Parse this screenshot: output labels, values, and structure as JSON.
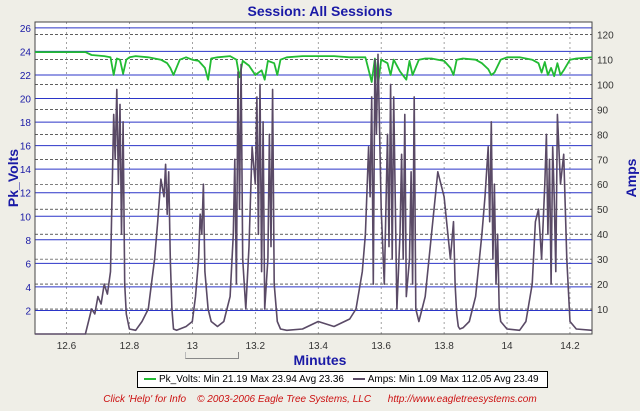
{
  "chart_data": {
    "type": "line",
    "title": "Session: All Sessions",
    "xlabel": "Minutes",
    "ylabel_left": "Pk_Volts",
    "ylabel_right": "Amps",
    "xlim": [
      12.5,
      14.27
    ],
    "ylim_left": [
      0,
      26.5
    ],
    "ylim_right": [
      0,
      125
    ],
    "x_ticks": [
      12.6,
      12.8,
      13,
      13.2,
      13.4,
      13.6,
      13.8,
      14,
      14.2
    ],
    "y_left_ticks": [
      2,
      4,
      6,
      8,
      10,
      12,
      14,
      16,
      18,
      20,
      22,
      24,
      26
    ],
    "y_right_ticks": [
      10,
      20,
      30,
      40,
      50,
      60,
      70,
      80,
      90,
      100,
      110,
      120
    ],
    "grid": true,
    "legend_position": "bottom",
    "series": [
      {
        "name": "Pk_Volts",
        "axis": "left",
        "color": "#22bb33",
        "x": [
          12.5,
          12.66,
          12.68,
          12.72,
          12.74,
          12.75,
          12.76,
          12.77,
          12.78,
          12.79,
          12.8,
          12.82,
          12.86,
          12.9,
          12.92,
          12.93,
          12.94,
          12.96,
          12.98,
          13.0,
          13.02,
          13.04,
          13.05,
          13.06,
          13.08,
          13.12,
          13.14,
          13.15,
          13.16,
          13.18,
          13.2,
          13.22,
          13.23,
          13.24,
          13.26,
          13.27,
          13.28,
          13.3,
          13.35,
          13.4,
          13.45,
          13.5,
          13.55,
          13.57,
          13.58,
          13.59,
          13.6,
          13.62,
          13.63,
          13.64,
          13.66,
          13.68,
          13.69,
          13.7,
          13.72,
          13.74,
          13.76,
          13.78,
          13.8,
          13.82,
          13.83,
          13.84,
          13.86,
          13.9,
          13.92,
          13.94,
          13.95,
          13.96,
          13.98,
          14.0,
          14.04,
          14.08,
          14.1,
          14.11,
          14.12,
          14.13,
          14.14,
          14.15,
          14.16,
          14.17,
          14.18,
          14.2,
          14.22,
          14.27
        ],
        "values": [
          23.94,
          23.94,
          23.7,
          23.6,
          23.5,
          22.0,
          23.4,
          23.3,
          22.1,
          23.3,
          23.5,
          23.6,
          23.5,
          23.3,
          23.0,
          22.6,
          22.0,
          23.3,
          23.5,
          23.3,
          23.2,
          22.6,
          21.6,
          23.4,
          23.5,
          23.6,
          23.3,
          21.8,
          23.2,
          22.8,
          22.0,
          22.4,
          21.6,
          23.2,
          23.0,
          22.0,
          23.3,
          23.5,
          23.6,
          23.6,
          23.6,
          23.5,
          23.5,
          21.4,
          23.4,
          21.19,
          23.3,
          23.0,
          22.0,
          23.3,
          22.3,
          21.6,
          23.2,
          22.0,
          23.3,
          23.4,
          23.4,
          23.3,
          23.2,
          22.6,
          22.0,
          23.3,
          23.4,
          23.3,
          23.0,
          22.5,
          22.0,
          22.2,
          23.3,
          23.5,
          23.5,
          23.3,
          23.0,
          22.2,
          23.1,
          22.0,
          22.6,
          21.9,
          23.0,
          22.0,
          22.4,
          23.3,
          23.4,
          23.5
        ]
      },
      {
        "name": "Amps",
        "axis": "right",
        "color": "#5a4a66",
        "x": [
          12.5,
          12.66,
          12.67,
          12.68,
          12.69,
          12.7,
          12.71,
          12.72,
          12.73,
          12.74,
          12.75,
          12.755,
          12.76,
          12.765,
          12.77,
          12.775,
          12.78,
          12.785,
          12.79,
          12.8,
          12.82,
          12.84,
          12.86,
          12.87,
          12.88,
          12.89,
          12.9,
          12.91,
          12.915,
          12.92,
          12.925,
          12.93,
          12.935,
          12.94,
          12.95,
          12.96,
          12.98,
          13.0,
          13.01,
          13.02,
          13.025,
          13.03,
          13.035,
          13.04,
          13.05,
          13.06,
          13.08,
          13.1,
          13.12,
          13.13,
          13.135,
          13.14,
          13.145,
          13.15,
          13.155,
          13.16,
          13.17,
          13.18,
          13.19,
          13.2,
          13.205,
          13.21,
          13.215,
          13.22,
          13.225,
          13.23,
          13.24,
          13.245,
          13.25,
          13.255,
          13.26,
          13.27,
          13.28,
          13.3,
          13.35,
          13.4,
          13.45,
          13.5,
          13.52,
          13.54,
          13.55,
          13.56,
          13.565,
          13.57,
          13.575,
          13.58,
          13.585,
          13.59,
          13.6,
          13.61,
          13.62,
          13.625,
          13.63,
          13.635,
          13.64,
          13.65,
          13.66,
          13.665,
          13.67,
          13.675,
          13.68,
          13.69,
          13.695,
          13.7,
          13.705,
          13.71,
          13.72,
          13.74,
          13.76,
          13.78,
          13.8,
          13.82,
          13.83,
          13.835,
          13.84,
          13.845,
          13.85,
          13.86,
          13.88,
          13.9,
          13.92,
          13.93,
          13.94,
          13.945,
          13.95,
          13.955,
          13.96,
          13.965,
          13.97,
          13.975,
          13.98,
          14.0,
          14.04,
          14.06,
          14.08,
          14.09,
          14.1,
          14.11,
          14.12,
          14.125,
          14.13,
          14.135,
          14.14,
          14.145,
          14.15,
          14.155,
          14.16,
          14.17,
          14.18,
          14.19,
          14.2,
          14.22,
          14.27
        ],
        "values": [
          0,
          0,
          5,
          10,
          8,
          15,
          12,
          20,
          16,
          25,
          88,
          70,
          98,
          60,
          92,
          40,
          85,
          20,
          8,
          2,
          1.5,
          5,
          10,
          20,
          30,
          45,
          62,
          55,
          68,
          48,
          65,
          30,
          10,
          2,
          1.5,
          2,
          3,
          5,
          15,
          30,
          48,
          40,
          60,
          25,
          10,
          5,
          3,
          5,
          15,
          40,
          70,
          20,
          105,
          50,
          108,
          30,
          10,
          35,
          75,
          60,
          95,
          40,
          100,
          25,
          85,
          10,
          30,
          80,
          35,
          98,
          20,
          5,
          2,
          1.5,
          2,
          5,
          3,
          6,
          10,
          25,
          40,
          75,
          55,
          95,
          20,
          110,
          80,
          112.05,
          50,
          20,
          80,
          35,
          100,
          30,
          95,
          10,
          40,
          72,
          30,
          88,
          15,
          30,
          65,
          20,
          95,
          10,
          5,
          15,
          40,
          65,
          55,
          30,
          45,
          20,
          8,
          3,
          2,
          2.5,
          5,
          15,
          40,
          55,
          75,
          45,
          85,
          30,
          60,
          20,
          40,
          10,
          5,
          2,
          1.5,
          5,
          20,
          45,
          50,
          30,
          60,
          80,
          40,
          70,
          20,
          75,
          55,
          25,
          88,
          60,
          72,
          30,
          5,
          2,
          1.5
        ]
      }
    ]
  },
  "legend": {
    "volts_text": "Pk_Volts:  Min 21.19 Max 23.94 Avg 23.36",
    "amps_text": "Amps:  Min 1.09 Max 112.05 Avg 23.49"
  },
  "footer": {
    "text": "Click 'Help' for Info    © 2003-2006 Eagle Tree Systems, LLC      http://www.eagletreesystems.com"
  }
}
